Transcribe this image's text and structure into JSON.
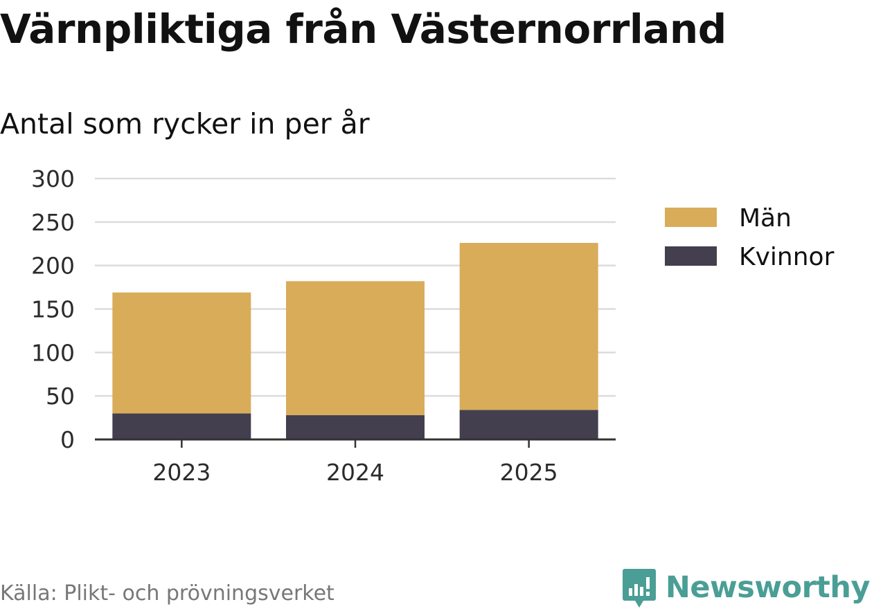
{
  "title": "Värnpliktiga från Västernorrland",
  "subtitle": "Antal som rycker in per år",
  "source": "Källa: Plikt- och prövningsverket",
  "brand": {
    "name": "Newsworthy",
    "icon": "bar-chart-speech-bubble-icon",
    "color": "#4a9e96"
  },
  "colors": {
    "man": "#d9ac5a",
    "kvinnor": "#433f4e",
    "grid": "#dcdcdc",
    "axis": "#333333"
  },
  "chart_data": {
    "type": "bar",
    "stacked": true,
    "title": "Värnpliktiga från Västernorrland",
    "subtitle": "Antal som rycker in per år",
    "xlabel": "",
    "ylabel": "",
    "categories": [
      "2023",
      "2024",
      "2025"
    ],
    "ylim": [
      0,
      300
    ],
    "yticks": [
      0,
      50,
      100,
      150,
      200,
      250,
      300
    ],
    "grid": true,
    "legend_position": "right",
    "series": [
      {
        "name": "Kvinnor",
        "values": [
          30,
          28,
          34
        ],
        "color": "#433f4e"
      },
      {
        "name": "Män",
        "values": [
          139,
          154,
          192
        ],
        "color": "#d9ac5a"
      }
    ],
    "legend": [
      "Män",
      "Kvinnor"
    ]
  }
}
